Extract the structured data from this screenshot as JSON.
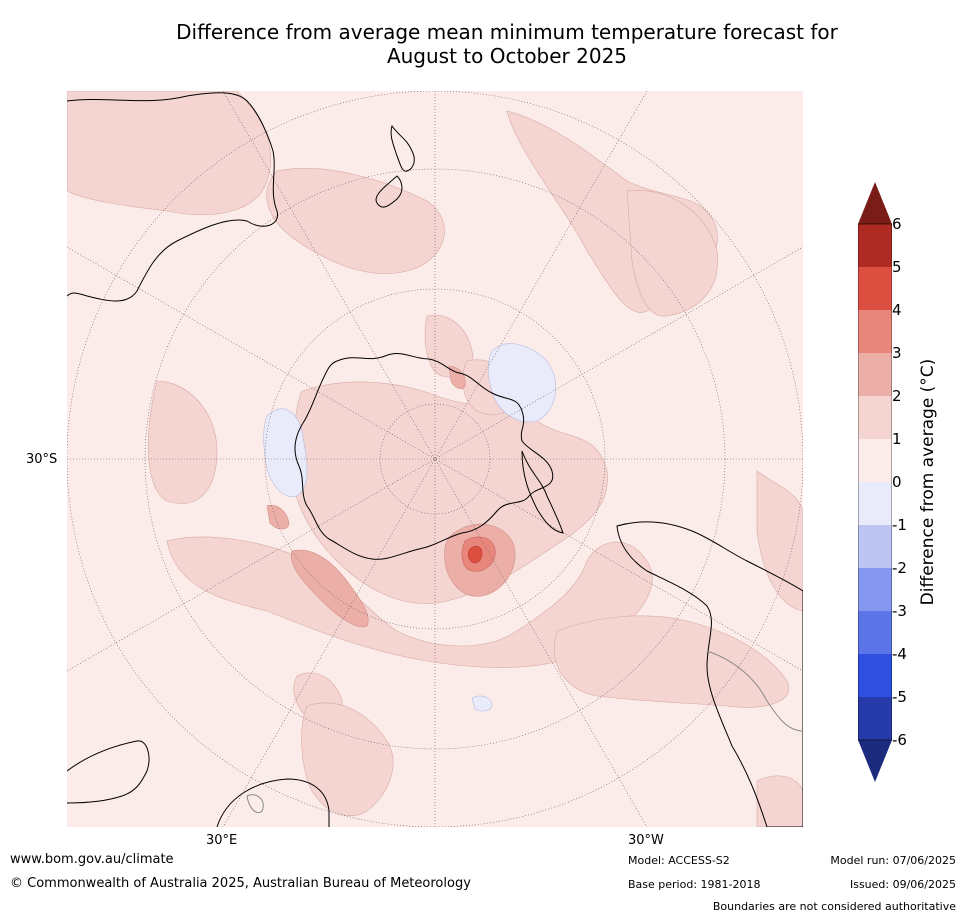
{
  "title_line1": "Difference from average mean minimum temperature forecast for",
  "title_line2": "August to October 2025",
  "map": {
    "lat_label": "30°S",
    "lon_labels": {
      "east": "30°E",
      "west": "30°W"
    }
  },
  "colorbar": {
    "label": "Difference from average ($^\\circ$C)",
    "label_display": "Difference from average (°C)",
    "ticks": [
      "6",
      "5",
      "4",
      "3",
      "2",
      "1",
      "0",
      "-1",
      "-2",
      "-3",
      "-4",
      "-5",
      "-6"
    ],
    "colors": {
      "over": "#7a1c17",
      "6_to_5": "#ad2b23",
      "5_to_4": "#dc4f40",
      "4_to_3": "#e8867c",
      "3_to_2": "#ecafa8",
      "2_to_1": "#f4d5d1",
      "1_to_0": "#fbebe9",
      "0_to_-1": "#e9ebfa",
      "-1_to_-2": "#bfc5f3",
      "-2_to_-3": "#8597ee",
      "-3_to_-4": "#5b74e7",
      "-4_to_-5": "#2f4fe0",
      "-5_to_-6": "#263ba9",
      "under": "#1c2b7d"
    }
  },
  "footer": {
    "url": "www.bom.gov.au/climate",
    "copyright": "© Commonwealth of Australia 2025, Australian Bureau of Meteorology",
    "model": "Model: ACCESS-S2",
    "base_period": "Base period: 1981-2018",
    "model_run": "Model run: 07/06/2025",
    "issued": "Issued: 09/06/2025",
    "disclaimer": "Boundaries are not considered authoritative"
  }
}
